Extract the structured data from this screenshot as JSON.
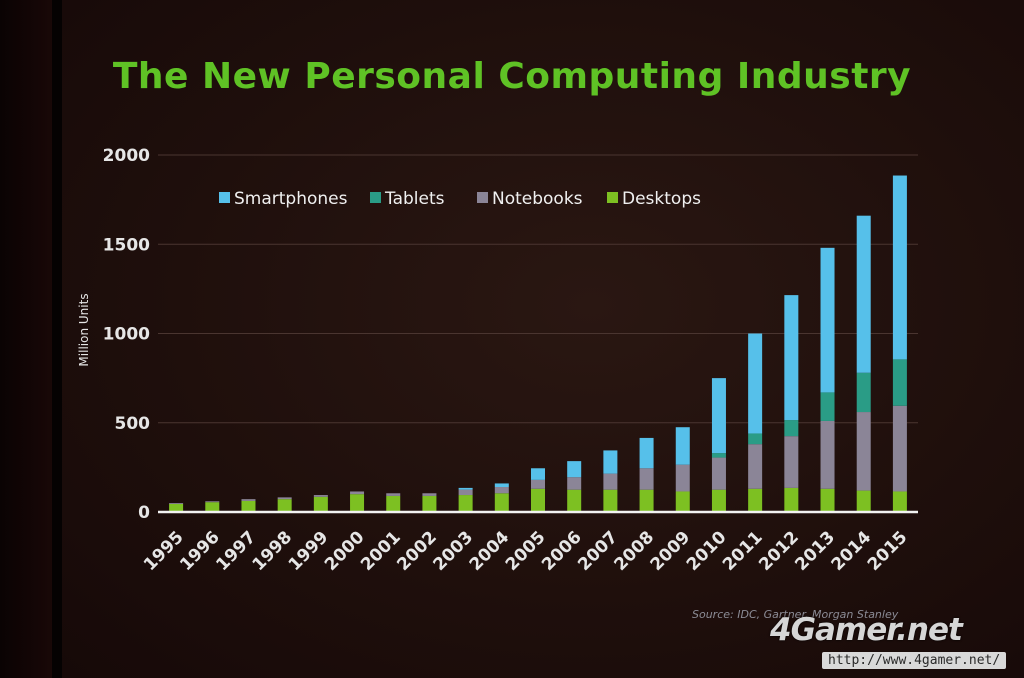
{
  "title": "The New Personal Computing Industry",
  "source": "Source: IDC, Gartner, Morgan Stanley",
  "watermark": {
    "brand": "4Gamer.net",
    "url": "http://www.4gamer.net/"
  },
  "colors": {
    "Smartphones": "#56c0ea",
    "Tablets": "#2a9c86",
    "Notebooks": "#8b8597",
    "Desktops": "#7dc022",
    "title": "#5fc225",
    "axis_text": "#e6e6e6"
  },
  "chart_data": {
    "type": "bar",
    "stacked": true,
    "title": "The New Personal Computing Industry",
    "ylabel": "Million Units",
    "xlabel": "",
    "ylim": [
      0,
      2000
    ],
    "yticks": [
      0,
      500,
      1000,
      1500,
      2000
    ],
    "grid": true,
    "legend_position": "top-left",
    "categories": [
      "1995",
      "1996",
      "1997",
      "1998",
      "1999",
      "2000",
      "2001",
      "2002",
      "2003",
      "2004",
      "2005",
      "2006",
      "2007",
      "2008",
      "2009",
      "2010",
      "2011",
      "2012",
      "2013",
      "2014",
      "2015"
    ],
    "series": [
      {
        "name": "Desktops",
        "values": [
          45,
          55,
          62,
          72,
          85,
          100,
          90,
          90,
          95,
          105,
          130,
          125,
          125,
          125,
          115,
          125,
          130,
          135,
          130,
          120,
          115
        ]
      },
      {
        "name": "Notebooks",
        "values": [
          5,
          5,
          10,
          10,
          10,
          15,
          15,
          15,
          30,
          35,
          50,
          70,
          90,
          120,
          150,
          180,
          250,
          290,
          380,
          440,
          480
        ]
      },
      {
        "name": "Tablets",
        "values": [
          0,
          0,
          0,
          0,
          0,
          0,
          0,
          0,
          0,
          0,
          0,
          0,
          0,
          0,
          0,
          25,
          60,
          90,
          160,
          220,
          260
        ]
      },
      {
        "name": "Smartphones",
        "values": [
          0,
          0,
          0,
          0,
          0,
          0,
          0,
          0,
          10,
          20,
          65,
          90,
          130,
          170,
          210,
          420,
          560,
          700,
          810,
          880,
          1030
        ]
      }
    ]
  }
}
